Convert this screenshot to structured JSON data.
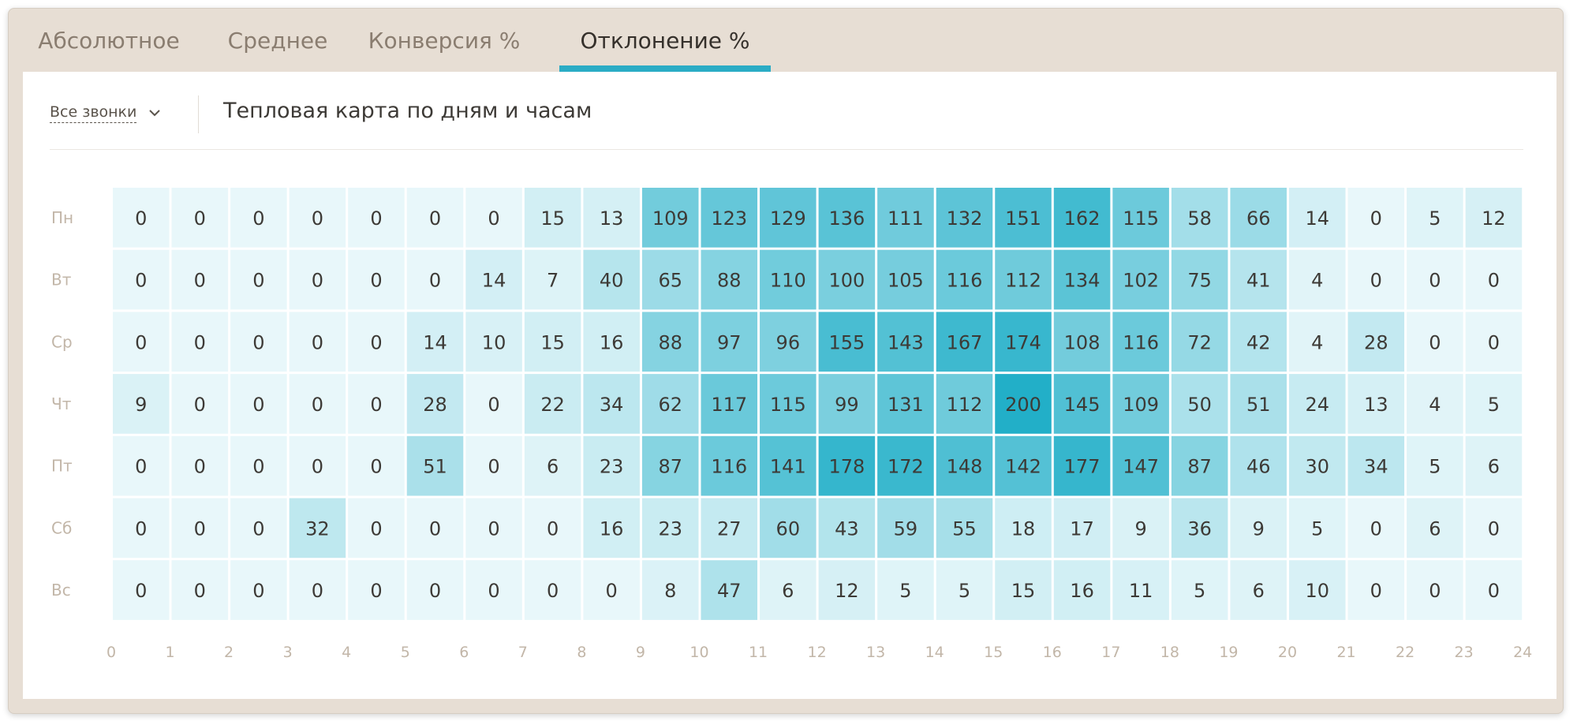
{
  "tabs": [
    {
      "label": "Абсолютное",
      "active": false
    },
    {
      "label": "Среднее",
      "active": false
    },
    {
      "label": "Конверсия %",
      "active": false
    },
    {
      "label": "Отклонение %",
      "active": true
    }
  ],
  "filter": {
    "label": "Все звонки",
    "icon": "chevron-down-icon"
  },
  "panel_title": "Тепловая карта по дням и часам",
  "colors": {
    "accent": "#2bacc5",
    "scale_min": "#e8f7fa",
    "scale_max": "#22afc8"
  },
  "chart_data": {
    "type": "heatmap",
    "rows": [
      "Пн",
      "Вт",
      "Ср",
      "Чт",
      "Пт",
      "Сб",
      "Вс"
    ],
    "x_ticks": [
      "0",
      "1",
      "2",
      "3",
      "4",
      "5",
      "6",
      "7",
      "8",
      "9",
      "10",
      "11",
      "12",
      "13",
      "14",
      "15",
      "16",
      "17",
      "18",
      "19",
      "20",
      "21",
      "22",
      "23",
      "24"
    ],
    "value_range": [
      0,
      200
    ],
    "values": [
      [
        0,
        0,
        0,
        0,
        0,
        0,
        0,
        15,
        13,
        109,
        123,
        129,
        136,
        111,
        132,
        151,
        162,
        115,
        58,
        66,
        14,
        0,
        5,
        12
      ],
      [
        0,
        0,
        0,
        0,
        0,
        0,
        14,
        7,
        40,
        65,
        88,
        110,
        100,
        105,
        116,
        112,
        134,
        102,
        75,
        41,
        4,
        0,
        0,
        0
      ],
      [
        0,
        0,
        0,
        0,
        0,
        14,
        10,
        15,
        16,
        88,
        97,
        96,
        155,
        143,
        167,
        174,
        108,
        116,
        72,
        42,
        4,
        28,
        0,
        0
      ],
      [
        9,
        0,
        0,
        0,
        0,
        28,
        0,
        22,
        34,
        62,
        117,
        115,
        99,
        131,
        112,
        200,
        145,
        109,
        50,
        51,
        24,
        13,
        4,
        5
      ],
      [
        0,
        0,
        0,
        0,
        0,
        51,
        0,
        6,
        23,
        87,
        116,
        141,
        178,
        172,
        148,
        142,
        177,
        147,
        87,
        46,
        30,
        34,
        5,
        6
      ],
      [
        0,
        0,
        0,
        32,
        0,
        0,
        0,
        0,
        16,
        23,
        27,
        60,
        43,
        59,
        55,
        18,
        17,
        9,
        36,
        9,
        5,
        0,
        6,
        0
      ],
      [
        0,
        0,
        0,
        0,
        0,
        0,
        0,
        0,
        0,
        8,
        47,
        6,
        12,
        5,
        5,
        15,
        16,
        11,
        5,
        6,
        10,
        0,
        0,
        0
      ]
    ]
  }
}
